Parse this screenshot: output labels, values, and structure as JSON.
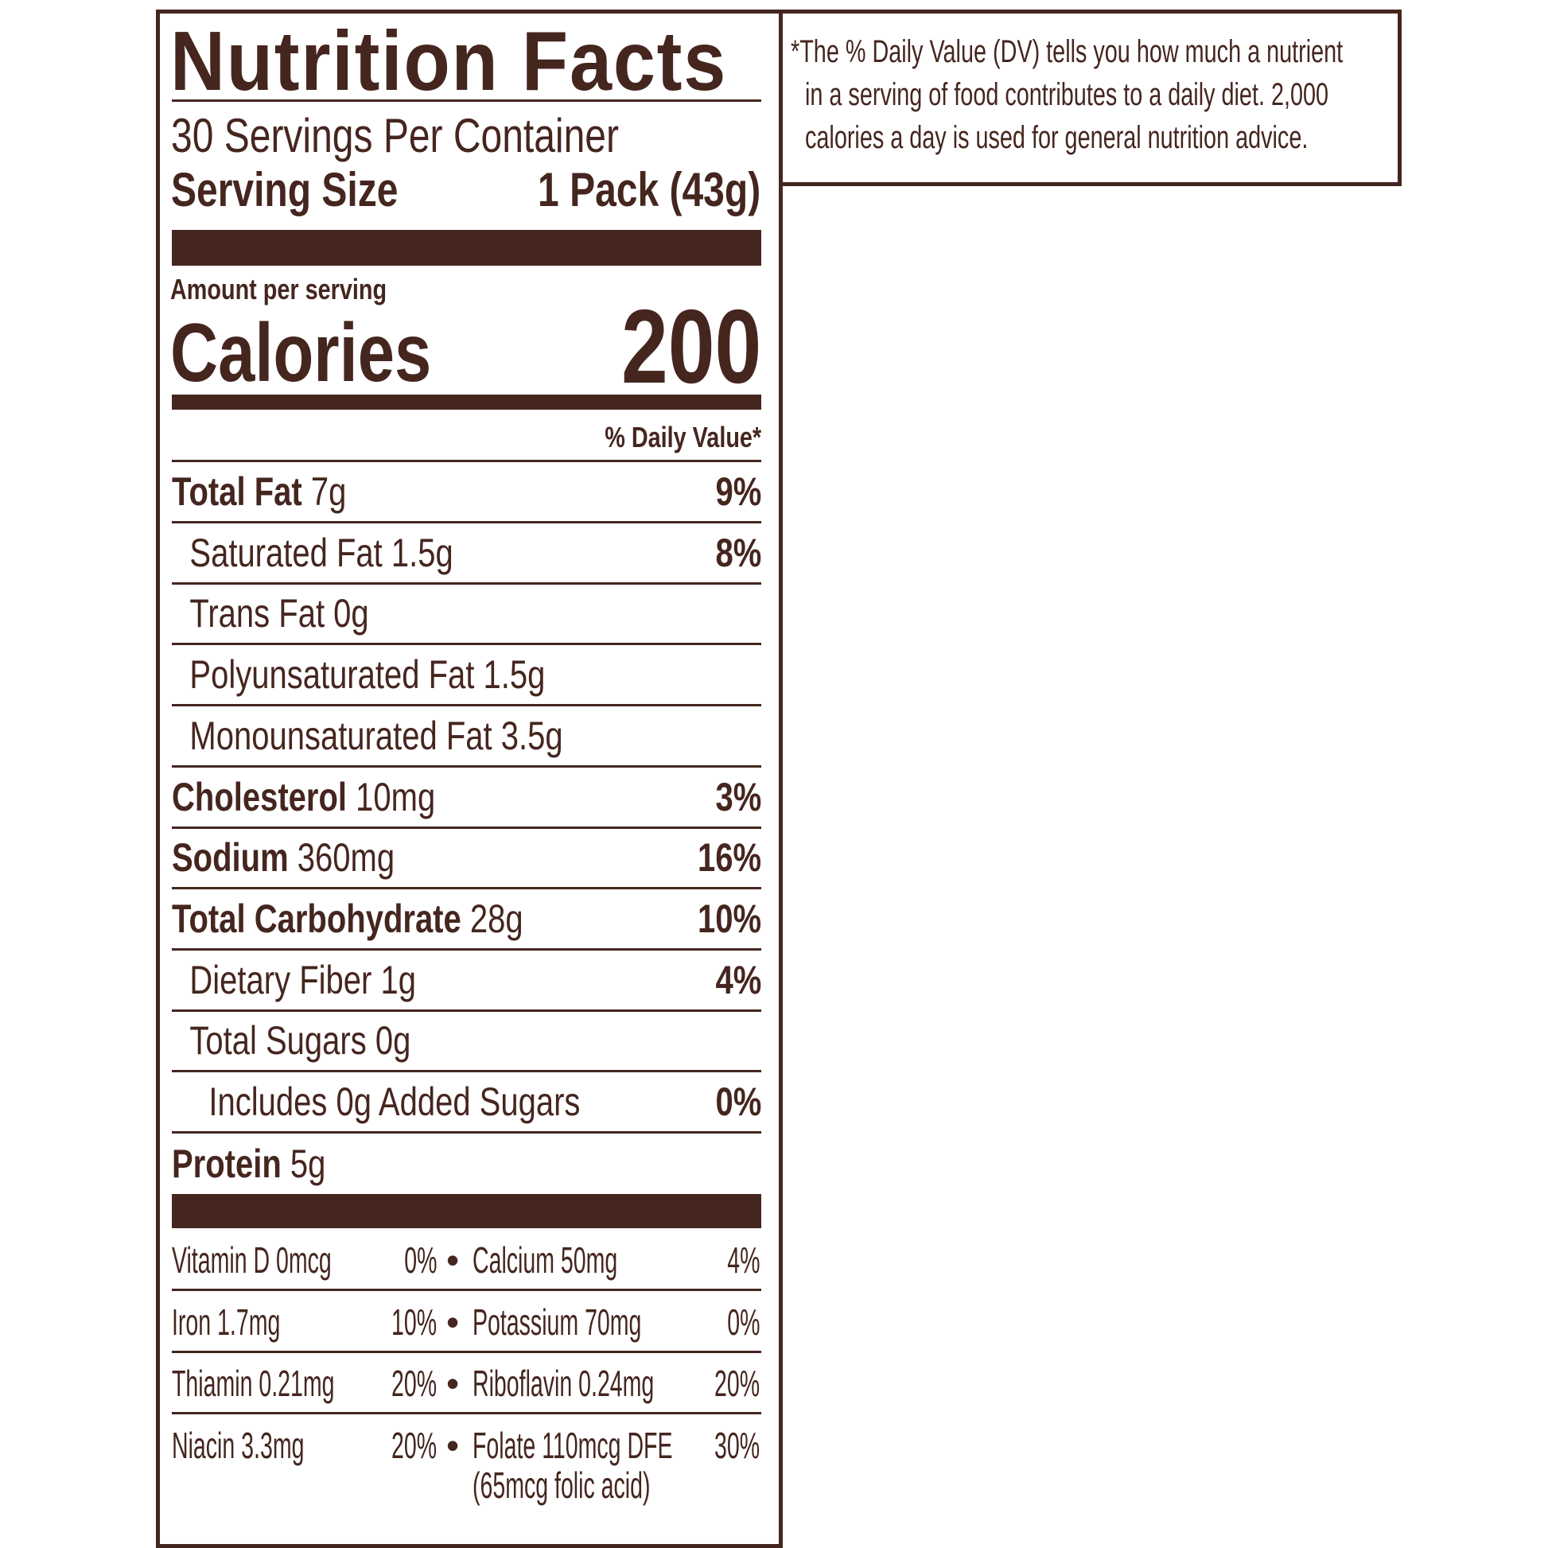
{
  "colors": {
    "ink": "#45261f",
    "background": "#ffffff"
  },
  "label": {
    "title": "Nutrition Facts",
    "servings_per_container": "30 Servings Per Container",
    "serving_size_label": "Serving Size",
    "serving_size_value": "1 Pack (43g)",
    "amount_per_serving": "Amount per serving",
    "calories_label": "Calories",
    "calories_value": "200",
    "daily_value_header": "% Daily Value*",
    "nutrients": [
      {
        "name": "Total Fat",
        "amount": "7g",
        "dv": "9%"
      },
      {
        "name": "Saturated Fat 1.5g",
        "amount": "",
        "dv": "8%"
      },
      {
        "name": "Trans Fat 0g",
        "amount": "",
        "dv": ""
      },
      {
        "name": "Polyunsaturated Fat 1.5g",
        "amount": "",
        "dv": ""
      },
      {
        "name": "Monounsaturated Fat 3.5g",
        "amount": "",
        "dv": ""
      },
      {
        "name": "Cholesterol",
        "amount": "10mg",
        "dv": "3%"
      },
      {
        "name": "Sodium",
        "amount": "360mg",
        "dv": "16%"
      },
      {
        "name": "Total Carbohydrate",
        "amount": "28g",
        "dv": "10%"
      },
      {
        "name": "Dietary Fiber 1g",
        "amount": "",
        "dv": "4%"
      },
      {
        "name": "Total Sugars 0g",
        "amount": "",
        "dv": ""
      },
      {
        "name": "Includes 0g Added Sugars",
        "amount": "",
        "dv": "0%"
      },
      {
        "name": "Protein",
        "amount": "5g",
        "dv": ""
      }
    ],
    "vitamins": [
      {
        "left_name": "Vitamin D 0mcg",
        "left_dv": "0%",
        "right_name": "Calcium 50mg",
        "right_dv": "4%"
      },
      {
        "left_name": "Iron 1.7mg",
        "left_dv": "10%",
        "right_name": "Potassium 70mg",
        "right_dv": "0%"
      },
      {
        "left_name": "Thiamin 0.21mg",
        "left_dv": "20%",
        "right_name": "Riboflavin 0.24mg",
        "right_dv": "20%"
      },
      {
        "left_name": "Niacin 3.3mg",
        "left_dv": "20%",
        "right_name": "Folate 110mcg DFE",
        "right_dv": "30%",
        "right_note": "(65mcg folic acid)"
      }
    ],
    "bullet": "•"
  },
  "footnote": {
    "lines": [
      "*The % Daily Value (DV) tells you how much a nutrient",
      "in a serving of food contributes to a daily diet. 2,000",
      "calories a day is used for general nutrition advice."
    ]
  }
}
